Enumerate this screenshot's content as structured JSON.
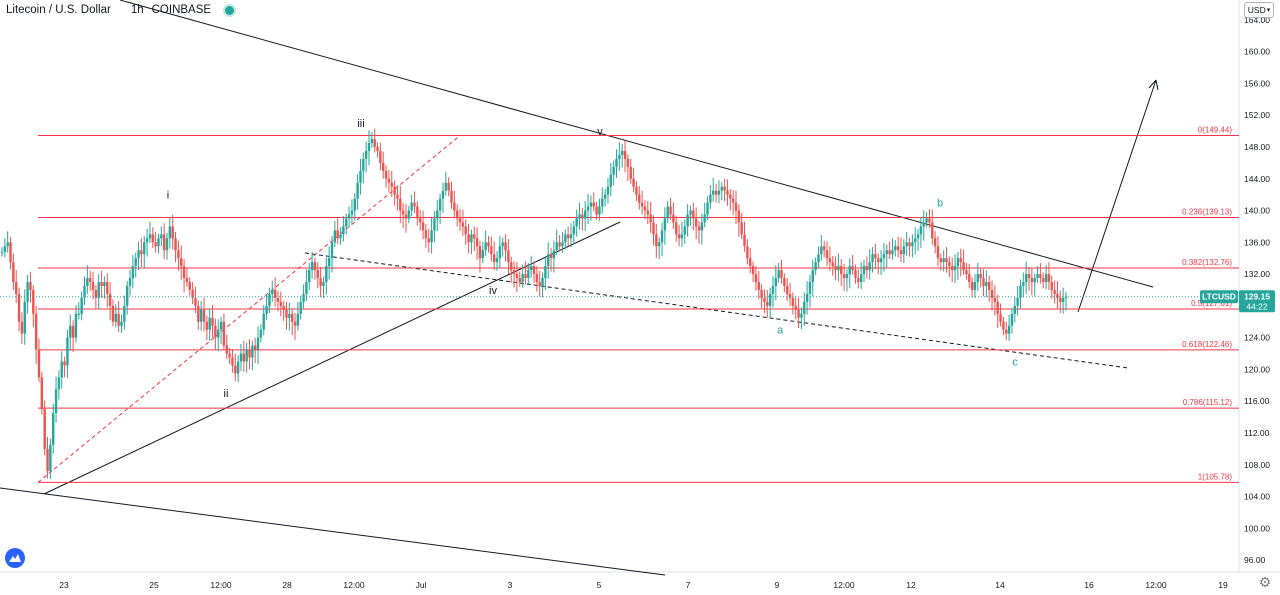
{
  "header": {
    "symbol_name": "Litecoin / U.S. Dollar",
    "interval": "1h",
    "exchange": "COINBASE"
  },
  "currency": {
    "value": "USD"
  },
  "price_label": {
    "ticker": "LTCUSD",
    "price": "129.15",
    "countdown": "44:22"
  },
  "colors": {
    "fib_line": "#f23645",
    "trend_line": "#131722",
    "up_candle": "#26a69a",
    "down_candle": "#ef5350",
    "wave_green": "#26a69a",
    "price_badge": "#26a69a"
  },
  "icons": {
    "logo": "tradingview-logo-icon",
    "settings": "gear-icon"
  },
  "chart_data": {
    "type": "candlestick",
    "x_ticks": [
      "23",
      "25",
      "12:00",
      "28",
      "12:00",
      "Jul",
      "3",
      "5",
      "7",
      "9",
      "12:00",
      "12",
      "14",
      "16",
      "12:00",
      "19"
    ],
    "y_ticks": [
      96,
      100,
      104,
      108,
      112,
      116,
      120,
      124,
      128,
      132,
      136,
      140,
      144,
      148,
      152,
      156,
      160,
      164
    ],
    "y_tick_labels": [
      "96.00",
      "100.00",
      "104.00",
      "108.00",
      "112.00",
      "116.00",
      "120.00",
      "124.00",
      "128.00",
      "132.00",
      "136.00",
      "140.00",
      "144.00",
      "148.00",
      "152.00",
      "156.00",
      "160.00",
      "164.00"
    ],
    "ylim": [
      94.5,
      166.5
    ],
    "grid": false,
    "fib_levels": [
      {
        "label": "0(149.44)",
        "value": 149.44
      },
      {
        "label": "0.236(139.13)",
        "value": 139.13
      },
      {
        "label": "0.382(132.76)",
        "value": 132.76
      },
      {
        "label": "0.5(127.61)",
        "value": 127.61
      },
      {
        "label": "0.618(122.46)",
        "value": 122.46
      },
      {
        "label": "0.786(115.12)",
        "value": 115.12
      },
      {
        "label": "1(105.78)",
        "value": 105.78
      }
    ],
    "wave_labels": [
      {
        "text": "i",
        "price": 141.5
      },
      {
        "text": "ii",
        "price": 116.5
      },
      {
        "text": "iii",
        "price": 150.5
      },
      {
        "text": "iv",
        "price": 129.5
      },
      {
        "text": "v",
        "price": 149.5
      },
      {
        "text": "a",
        "price": 124.5
      },
      {
        "text": "b",
        "price": 140.5
      },
      {
        "text": "c",
        "price": 120.5
      }
    ],
    "current_price": 129.15,
    "candles_close": [
      134.8,
      135.5,
      136.0,
      133.5,
      131.0,
      129.5,
      126.0,
      124.5,
      128.5,
      131.0,
      130.0,
      127.0,
      122.5,
      119.0,
      115.0,
      110.0,
      107.2,
      110.5,
      114.5,
      117.5,
      119.0,
      121.0,
      120.5,
      124.0,
      125.5,
      124.0,
      127.0,
      127.0,
      129.0,
      130.5,
      131.5,
      131.0,
      130.0,
      129.0,
      131.0,
      130.5,
      131.0,
      129.5,
      128.0,
      126.0,
      127.0,
      125.5,
      126.0,
      128.0,
      130.5,
      131.5,
      133.0,
      134.0,
      135.0,
      134.5,
      136.0,
      136.5,
      137.0,
      136.0,
      135.5,
      136.5,
      137.0,
      135.0,
      136.5,
      138.0,
      136.5,
      135.0,
      134.0,
      133.0,
      131.5,
      131.0,
      130.0,
      129.0,
      128.0,
      126.0,
      127.5,
      126.0,
      125.0,
      126.5,
      125.5,
      124.0,
      125.0,
      126.0,
      123.0,
      122.0,
      121.5,
      120.5,
      119.5,
      121.0,
      122.0,
      121.0,
      122.5,
      121.5,
      123.0,
      122.5,
      124.0,
      125.0,
      127.0,
      128.0,
      129.5,
      130.0,
      129.0,
      128.5,
      128.0,
      127.5,
      126.5,
      127.0,
      126.0,
      125.5,
      127.0,
      128.5,
      129.5,
      131.0,
      132.5,
      133.5,
      132.5,
      131.5,
      130.5,
      131.0,
      133.0,
      134.0,
      136.0,
      137.5,
      136.5,
      137.0,
      138.0,
      139.0,
      139.5,
      140.0,
      141.5,
      143.5,
      145.0,
      146.5,
      147.5,
      148.5,
      149.0,
      148.0,
      147.5,
      146.0,
      145.0,
      144.0,
      143.5,
      143.0,
      142.0,
      141.5,
      140.0,
      139.5,
      139.0,
      140.0,
      141.0,
      140.5,
      139.0,
      138.5,
      137.5,
      136.5,
      136.0,
      137.5,
      139.0,
      140.0,
      141.5,
      142.5,
      143.5,
      142.5,
      141.0,
      140.0,
      139.0,
      138.5,
      138.0,
      137.0,
      136.0,
      137.0,
      136.5,
      135.5,
      134.0,
      135.0,
      136.0,
      135.5,
      134.5,
      133.5,
      134.0,
      135.5,
      136.0,
      135.0,
      133.5,
      132.5,
      132.0,
      131.5,
      131.0,
      132.0,
      131.5,
      132.5,
      133.0,
      132.0,
      131.0,
      130.5,
      131.5,
      133.0,
      134.5,
      134.0,
      135.0,
      136.0,
      135.5,
      136.0,
      137.0,
      136.5,
      137.0,
      138.0,
      139.0,
      139.5,
      139.0,
      140.0,
      140.5,
      141.0,
      140.5,
      139.5,
      140.5,
      141.5,
      142.0,
      143.0,
      144.5,
      145.5,
      146.5,
      147.0,
      147.5,
      146.5,
      145.5,
      144.0,
      143.0,
      142.0,
      141.0,
      140.5,
      140.0,
      139.5,
      138.5,
      137.0,
      135.5,
      136.0,
      137.5,
      139.0,
      140.5,
      139.5,
      138.5,
      137.0,
      136.5,
      137.0,
      138.0,
      139.5,
      140.0,
      139.0,
      138.0,
      137.5,
      138.5,
      139.5,
      141.0,
      142.0,
      142.5,
      142.0,
      142.5,
      143.0,
      142.5,
      142.0,
      141.5,
      141.0,
      140.0,
      138.5,
      137.0,
      135.5,
      134.0,
      133.0,
      132.0,
      131.0,
      130.0,
      129.0,
      128.5,
      128.0,
      129.5,
      130.5,
      131.5,
      132.5,
      131.5,
      130.5,
      129.5,
      129.0,
      128.0,
      127.5,
      126.5,
      127.0,
      128.5,
      129.5,
      131.0,
      132.5,
      133.5,
      134.5,
      135.5,
      135.0,
      134.0,
      133.5,
      133.0,
      132.5,
      133.0,
      132.0,
      131.5,
      132.0,
      133.0,
      132.5,
      131.5,
      131.0,
      132.0,
      133.0,
      132.5,
      133.5,
      134.5,
      134.0,
      133.5,
      134.0,
      134.5,
      135.0,
      134.5,
      135.0,
      135.5,
      135.0,
      134.5,
      135.5,
      136.0,
      135.5,
      136.0,
      136.5,
      137.0,
      138.0,
      138.5,
      139.0,
      138.5,
      136.5,
      135.5,
      134.0,
      133.5,
      134.0,
      133.5,
      133.0,
      132.5,
      133.0,
      134.0,
      133.5,
      132.5,
      132.0,
      131.0,
      130.0,
      131.0,
      132.0,
      131.5,
      130.5,
      131.0,
      130.0,
      129.0,
      128.5,
      127.0,
      126.0,
      125.0,
      124.5,
      125.5,
      127.0,
      128.0,
      129.0,
      130.5,
      131.0,
      132.0,
      131.5,
      131.0,
      131.5,
      132.0,
      131.5,
      131.0,
      132.0,
      131.0,
      130.0,
      129.5,
      129.0,
      128.5,
      129.0,
      129.15
    ]
  }
}
